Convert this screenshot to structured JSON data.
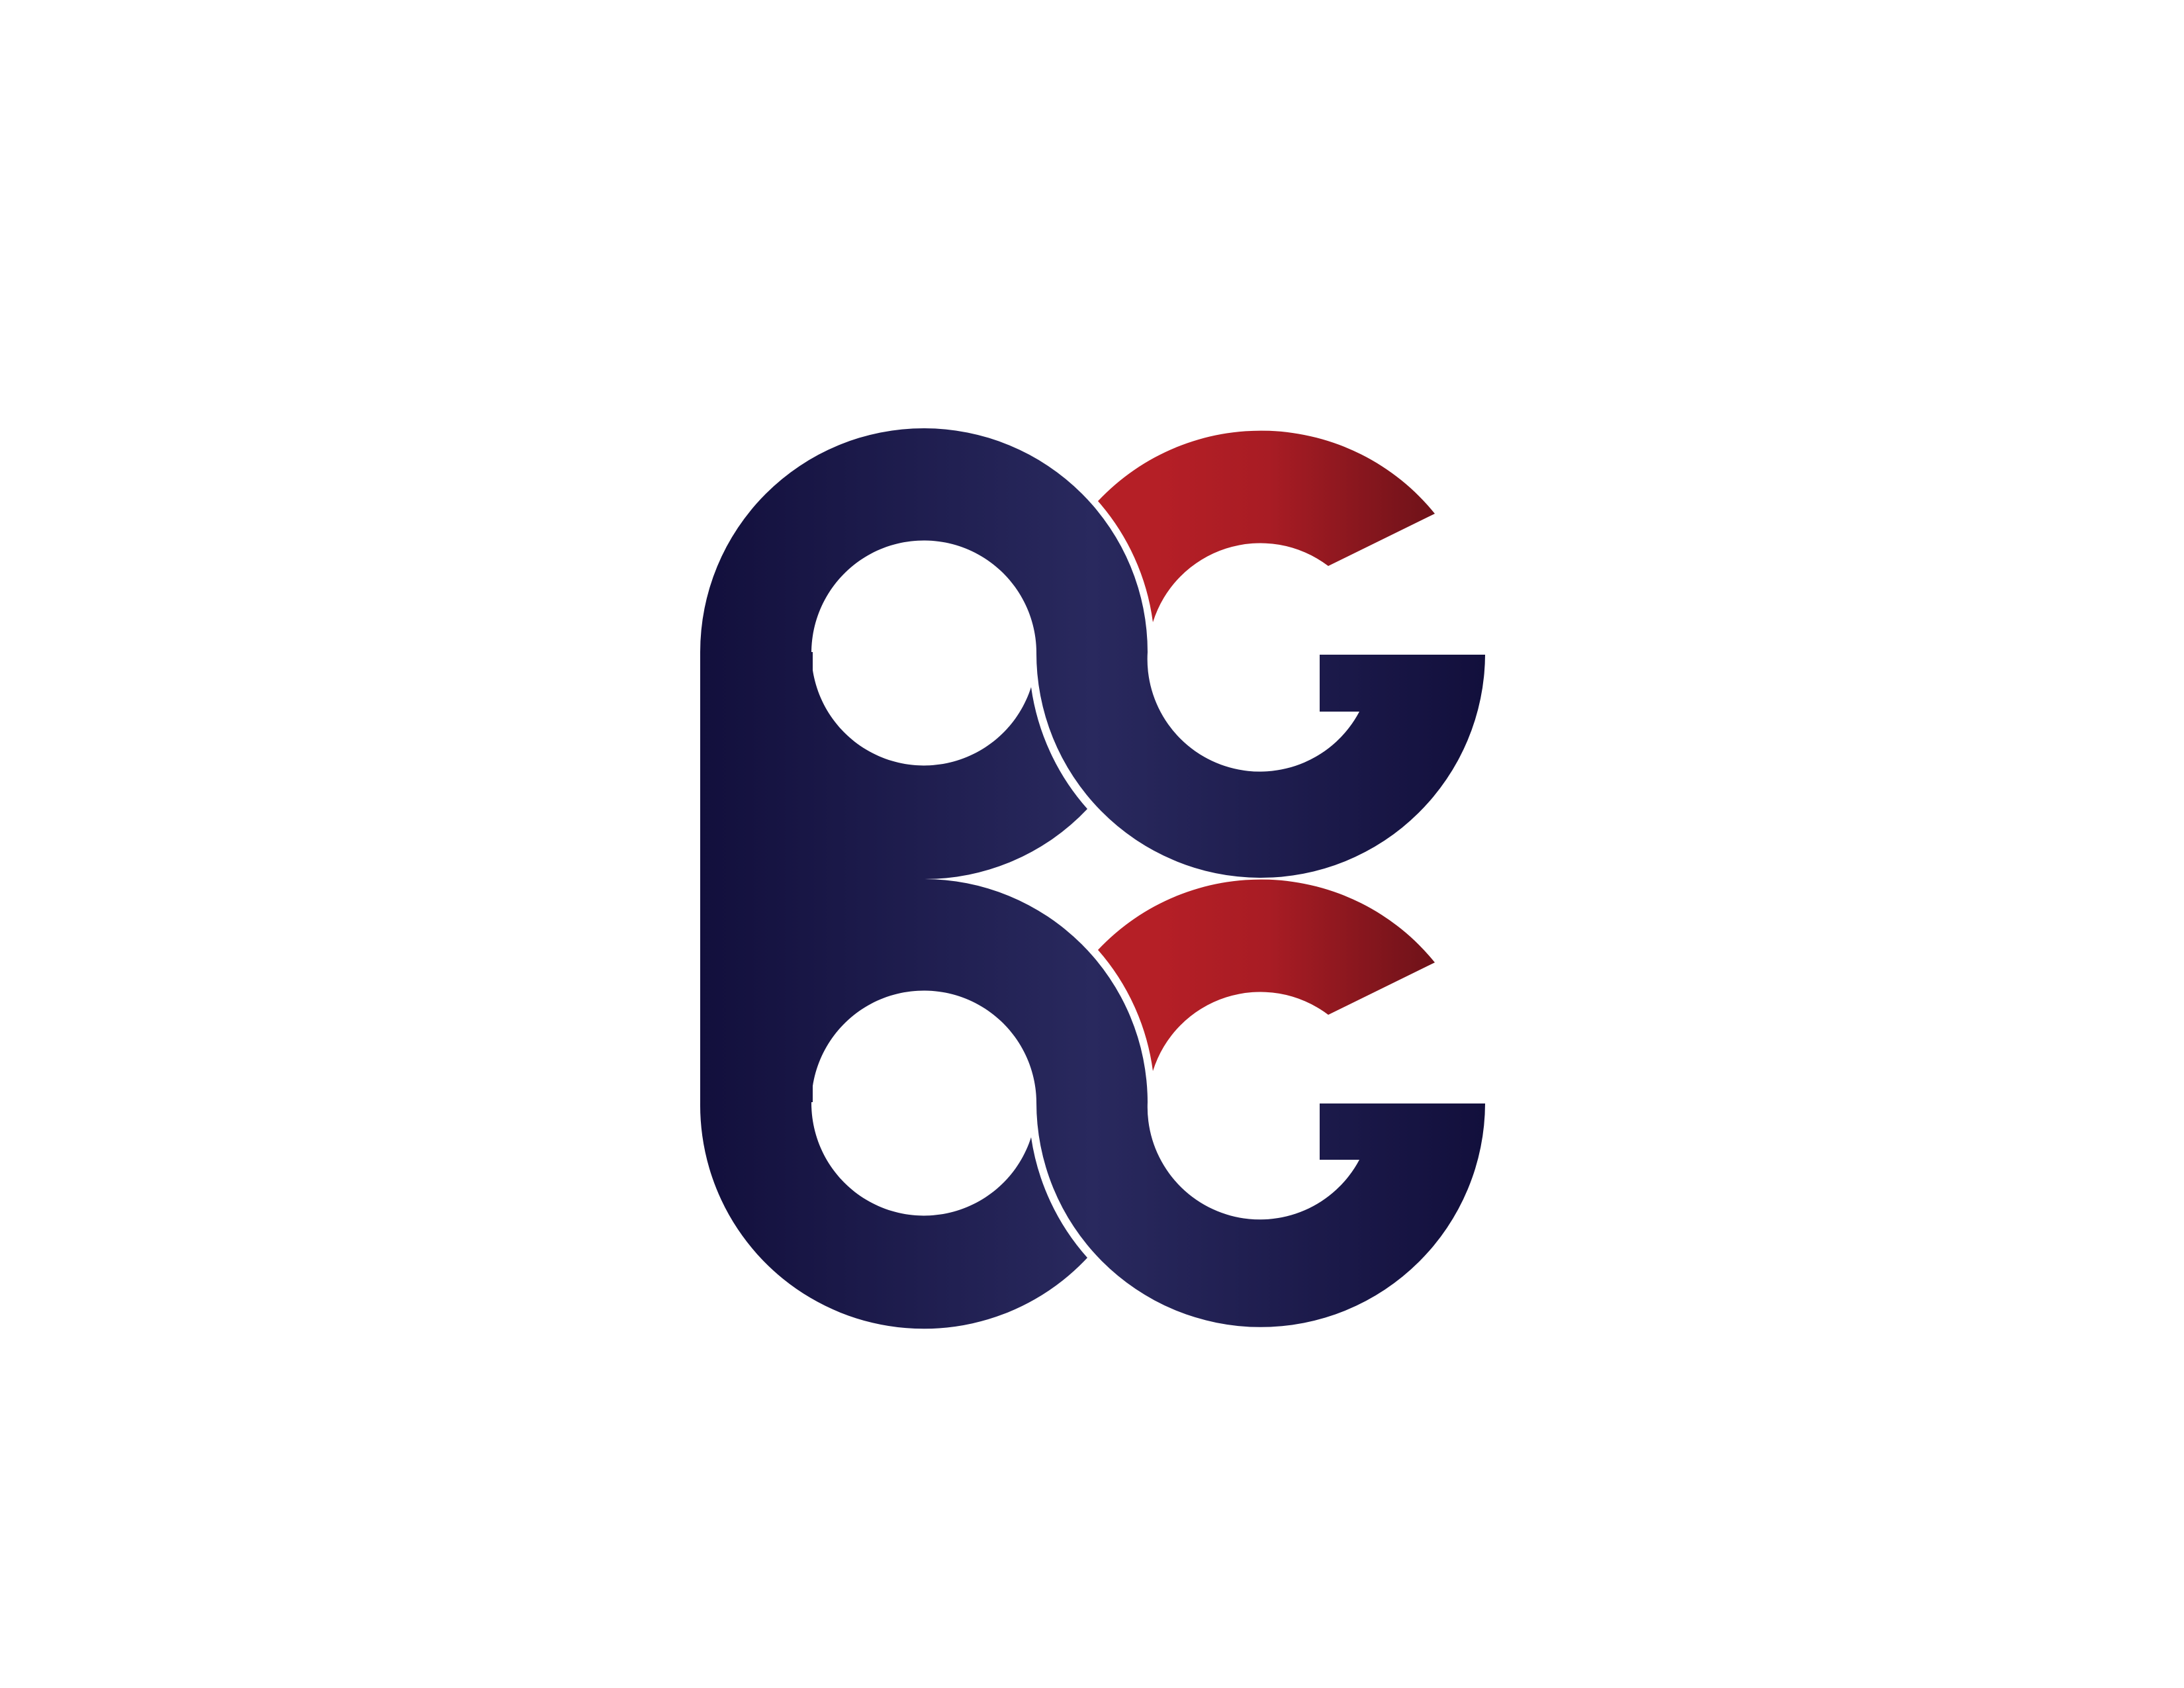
{
  "logo": {
    "monogram": "BGG",
    "mark": "bg-monogram-logo"
  },
  "colors": {
    "background": "#ffffff",
    "navy_light": "#29295e",
    "navy_mid": "#1d1a4d",
    "navy_dark": "#120f3c",
    "red_bright": "#b51f26",
    "red_dark": "#6e1219"
  }
}
